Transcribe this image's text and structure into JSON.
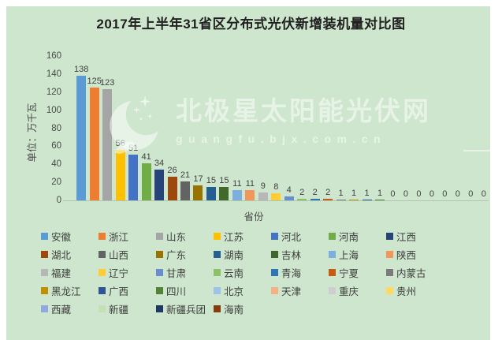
{
  "page": {
    "background": "#ffffff",
    "panel_background": "#cde6cd"
  },
  "header": {
    "title": "2017年上半年31省区分布式光伏新增装机量对比图"
  },
  "watermark": {
    "logo": "crescent-moon-with-stars",
    "brand": "北极星太阳能光伏网",
    "url_text": "guangfu.bjx.com.cn",
    "color": "#ffffff"
  },
  "chart_data": {
    "type": "bar",
    "title": "2017年上半年31省区分布式光伏新增装机量对比图",
    "xlabel": "省份",
    "ylabel": "单位：万千瓦",
    "ylim": [
      0,
      160
    ],
    "yticks": [
      0,
      20,
      40,
      60,
      80,
      100,
      120,
      140,
      160
    ],
    "grid": false,
    "value_labels": true,
    "legend_position": "bottom",
    "legend_columns": 7,
    "categories": [
      "安徽",
      "浙江",
      "山东",
      "江苏",
      "河北",
      "河南",
      "江西",
      "湖北",
      "山西",
      "广东",
      "湖南",
      "吉林",
      "上海",
      "陕西",
      "福建",
      "辽宁",
      "甘肃",
      "云南",
      "青海",
      "宁夏",
      "内蒙古",
      "黑龙江",
      "广西",
      "四川",
      "北京",
      "天津",
      "重庆",
      "贵州",
      "西藏",
      "新疆",
      "新疆兵团",
      "海南"
    ],
    "values": [
      138,
      125,
      123,
      56,
      51,
      41,
      34,
      26,
      21,
      17,
      15,
      15,
      11,
      11,
      9,
      8,
      4,
      2,
      2,
      2,
      1,
      1,
      1,
      1,
      0,
      0,
      0,
      0,
      0,
      0,
      0,
      0
    ],
    "colors": [
      "#5B9BD5",
      "#ED7D31",
      "#A5A5A5",
      "#FFC000",
      "#4472C4",
      "#70AD47",
      "#264478",
      "#9E480E",
      "#636363",
      "#997300",
      "#255E91",
      "#43682B",
      "#7CAFDD",
      "#F1975A",
      "#B7B7B7",
      "#FFCD33",
      "#698ED0",
      "#8CC168",
      "#2E75B6",
      "#C55A11",
      "#7B7B7B",
      "#BF8F00",
      "#2F5597",
      "#538135",
      "#9DC3E6",
      "#F4B183",
      "#CFCDCD",
      "#FFD966",
      "#8FAADC",
      "#C5E0B4",
      "#203864",
      "#843C0C"
    ]
  }
}
